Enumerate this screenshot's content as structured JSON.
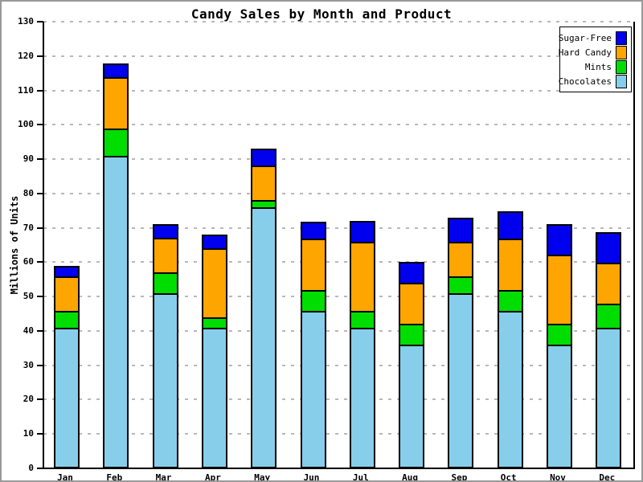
{
  "chart_data": {
    "type": "bar",
    "stacked": true,
    "title": "Candy Sales by Month and Product",
    "ylabel": "Millions of Units",
    "xlabel": "",
    "ylim": [
      0,
      130
    ],
    "ytick_step": 10,
    "grid": "dashed-horizontal",
    "legend_position": "top-right",
    "legend_order_top_to_bottom": [
      "Sugar-Free",
      "Hard Candy",
      "Mints",
      "Chocolates"
    ],
    "categories": [
      "Jan",
      "Feb",
      "Mar",
      "Apr",
      "May",
      "Jun",
      "Jul",
      "Aug",
      "Sep",
      "Oct",
      "Nov",
      "Dec"
    ],
    "series": [
      {
        "name": "Chocolates",
        "color": "#87CEEB",
        "values": [
          40,
          90,
          50,
          40,
          75,
          45,
          40,
          35,
          50,
          45,
          35,
          40
        ]
      },
      {
        "name": "Mints",
        "color": "#00DD00",
        "values": [
          5,
          8,
          6,
          3,
          2,
          6,
          5,
          6,
          5,
          6,
          6,
          7
        ]
      },
      {
        "name": "Hard Candy",
        "color": "#FFA500",
        "values": [
          10,
          15,
          10,
          20,
          10,
          15,
          20,
          12,
          10,
          15,
          20,
          12
        ]
      },
      {
        "name": "Sugar-Free",
        "color": "#0000EE",
        "values": [
          3,
          4,
          4,
          4,
          5,
          5,
          6,
          6,
          7,
          8,
          9,
          9
        ]
      }
    ],
    "totals": [
      58,
      117,
      70,
      67,
      92,
      71,
      71,
      59,
      72,
      74,
      70,
      68
    ]
  }
}
